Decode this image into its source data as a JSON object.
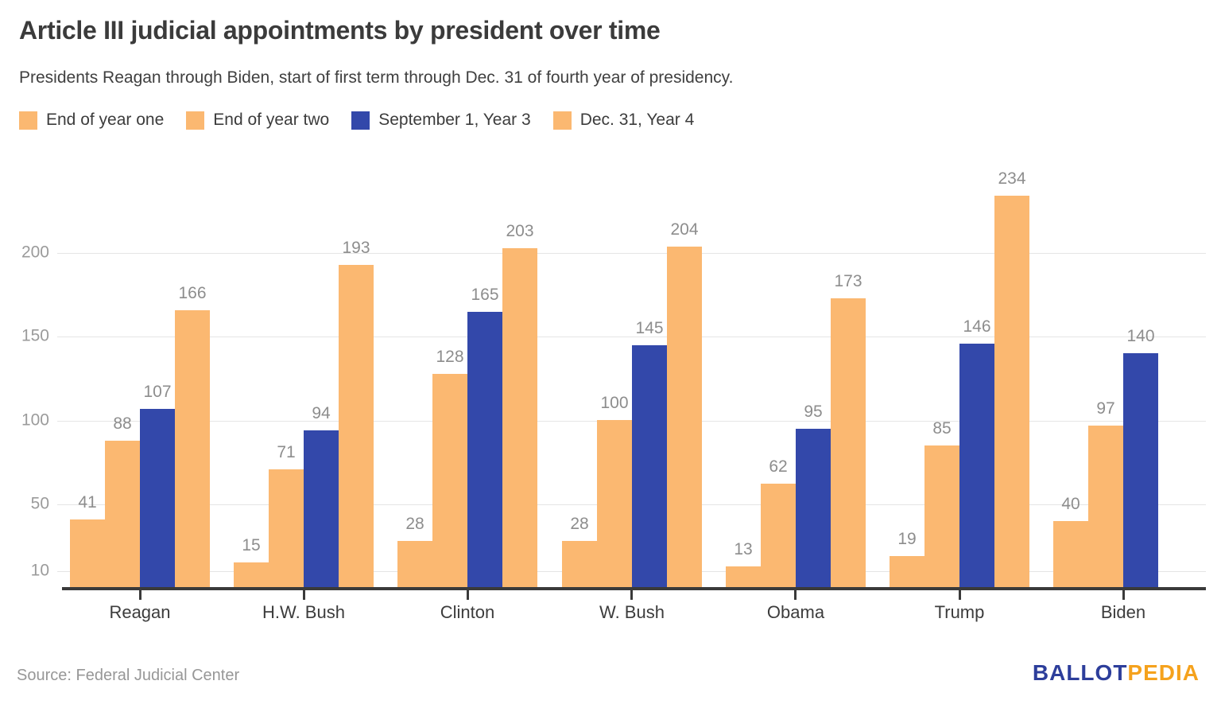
{
  "chart_data": {
    "type": "bar",
    "title": "Article III judicial appointments by president over time",
    "subtitle": "Presidents Reagan through Biden, start of first term through Dec. 31 of fourth year of presidency.",
    "categories": [
      "Reagan",
      "H.W. Bush",
      "Clinton",
      "W. Bush",
      "Obama",
      "Trump",
      "Biden"
    ],
    "series": [
      {
        "name": "End of year one",
        "color": "#FBB871",
        "values": [
          41,
          15,
          28,
          28,
          13,
          19,
          40
        ]
      },
      {
        "name": "End of year two",
        "color": "#FBB871",
        "values": [
          88,
          71,
          128,
          100,
          62,
          85,
          97
        ]
      },
      {
        "name": "September 1, Year 3",
        "color": "#3348AA",
        "values": [
          107,
          94,
          165,
          145,
          95,
          146,
          140
        ]
      },
      {
        "name": "Dec. 31, Year 4",
        "color": "#FBB871",
        "values": [
          166,
          193,
          203,
          204,
          173,
          234,
          null
        ]
      }
    ],
    "yticks": [
      10,
      50,
      100,
      150,
      200
    ],
    "ylim": [
      0,
      240
    ],
    "grid": true,
    "legend_position": "top",
    "value_labels": true,
    "xlabel": "",
    "ylabel": ""
  },
  "footer": {
    "source": "Source: Federal Judicial Center",
    "logo": {
      "part1": "BALLOT",
      "part2": "PEDIA",
      "part1_color": "#2D3E9B",
      "part2_color": "#F5A21D"
    }
  }
}
